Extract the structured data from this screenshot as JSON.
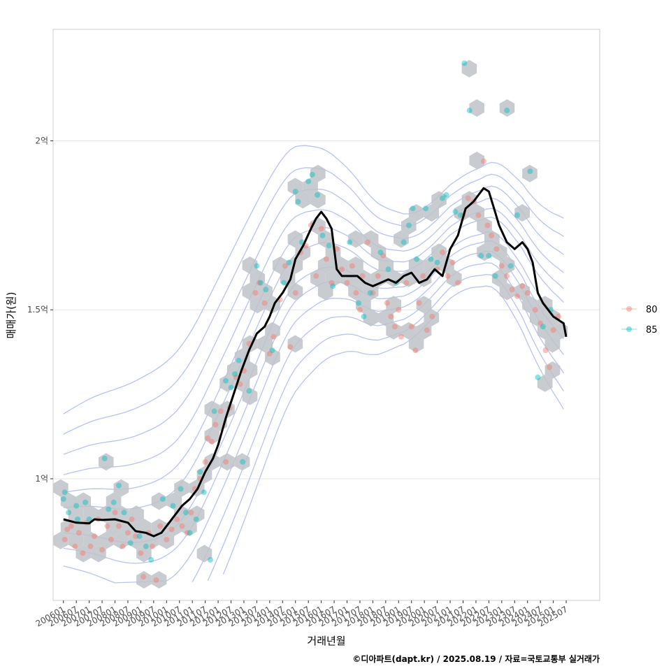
{
  "chart_data": {
    "type": "scatter",
    "title": "",
    "xlabel": "거래년월",
    "ylabel": "매매가(원)",
    "caption": "©디아파트(dapt.kr) / 2025.08.19 / 자료=국토교통부 실거래가",
    "xlim": [
      2005.6,
      2026.8
    ],
    "ylim": [
      0.64,
      2.33
    ],
    "y_unit": "억",
    "y_ticks": [
      {
        "value": 1.0,
        "label": "1억"
      },
      {
        "value": 1.5,
        "label": "1.5억"
      },
      {
        "value": 2.0,
        "label": "2억"
      }
    ],
    "x_ticks": [
      "200601",
      "200607",
      "200701",
      "200707",
      "200801",
      "200807",
      "200901",
      "200907",
      "201001",
      "201007",
      "201101",
      "201107",
      "201201",
      "201207",
      "201301",
      "201307",
      "201401",
      "201407",
      "201501",
      "201507",
      "201601",
      "201607",
      "201701",
      "201707",
      "201801",
      "201807",
      "201901",
      "201907",
      "202001",
      "202007",
      "202101",
      "202107",
      "202201",
      "202207",
      "202301",
      "202307",
      "202401",
      "202407",
      "202501",
      "202507"
    ],
    "grid": true,
    "legend": {
      "position": "right",
      "entries": [
        {
          "name": "80",
          "color": "#F8766D"
        },
        {
          "name": "85",
          "color": "#00BFC4"
        }
      ]
    },
    "colors": {
      "hexbin": "#BEC3C8",
      "contour": "#B7C4EE",
      "trend": "#000000",
      "grid": "#E6E6E6",
      "frame": "#CCCCCC"
    },
    "series": [
      {
        "name": "80",
        "color": "#F8766D",
        "points": [
          [
            2006.05,
            0.82
          ],
          [
            2006.15,
            0.85
          ],
          [
            2006.3,
            0.86
          ],
          [
            2006.45,
            0.8
          ],
          [
            2006.6,
            0.84
          ],
          [
            2006.75,
            0.78
          ],
          [
            2006.9,
            0.87
          ],
          [
            2007.05,
            0.8
          ],
          [
            2007.2,
            0.83
          ],
          [
            2007.35,
            0.88
          ],
          [
            2007.5,
            0.79
          ],
          [
            2007.7,
            0.86
          ],
          [
            2007.85,
            0.82
          ],
          [
            2008.0,
            0.9
          ],
          [
            2008.15,
            0.86
          ],
          [
            2008.3,
            0.8
          ],
          [
            2008.5,
            0.84
          ],
          [
            2008.65,
            0.88
          ],
          [
            2008.8,
            0.83
          ],
          [
            2009.0,
            0.78
          ],
          [
            2009.1,
            0.71
          ],
          [
            2009.3,
            0.84
          ],
          [
            2009.45,
            0.8
          ],
          [
            2009.6,
            0.7
          ],
          [
            2009.75,
            0.86
          ],
          [
            2010.0,
            0.82
          ],
          [
            2010.2,
            0.85
          ],
          [
            2010.4,
            0.88
          ],
          [
            2010.6,
            0.86
          ],
          [
            2010.8,
            0.84
          ],
          [
            2010.95,
            0.9
          ],
          [
            2011.1,
            0.97
          ],
          [
            2011.3,
            1.0
          ],
          [
            2011.5,
            1.05
          ],
          [
            2011.6,
            1.12
          ],
          [
            2011.75,
            1.11
          ],
          [
            2011.9,
            1.16
          ],
          [
            2012.1,
            1.2
          ],
          [
            2012.3,
            1.05
          ],
          [
            2012.45,
            1.21
          ],
          [
            2012.7,
            1.3
          ],
          [
            2012.85,
            1.28
          ],
          [
            2013.0,
            1.32
          ],
          [
            2013.2,
            1.4
          ],
          [
            2013.45,
            1.55
          ],
          [
            2013.6,
            1.58
          ],
          [
            2013.8,
            1.52
          ],
          [
            2014.0,
            1.37
          ],
          [
            2014.15,
            1.42
          ],
          [
            2014.4,
            1.53
          ],
          [
            2014.6,
            1.63
          ],
          [
            2014.8,
            1.39
          ],
          [
            2015.0,
            1.55
          ],
          [
            2015.2,
            1.67
          ],
          [
            2015.4,
            1.69
          ],
          [
            2015.6,
            1.75
          ],
          [
            2015.8,
            1.6
          ],
          [
            2016.0,
            1.74
          ],
          [
            2016.2,
            1.65
          ],
          [
            2016.4,
            1.58
          ],
          [
            2016.6,
            1.68
          ],
          [
            2016.8,
            1.62
          ],
          [
            2017.0,
            1.58
          ],
          [
            2017.2,
            1.63
          ],
          [
            2017.35,
            1.55
          ],
          [
            2017.5,
            1.5
          ],
          [
            2017.6,
            1.6
          ],
          [
            2017.8,
            1.7
          ],
          [
            2018.0,
            1.55
          ],
          [
            2018.2,
            1.6
          ],
          [
            2018.4,
            1.66
          ],
          [
            2018.55,
            1.52
          ],
          [
            2018.7,
            1.48
          ],
          [
            2018.85,
            1.45
          ],
          [
            2019.0,
            1.5
          ],
          [
            2019.1,
            1.42
          ],
          [
            2019.3,
            1.58
          ],
          [
            2019.5,
            1.45
          ],
          [
            2019.65,
            1.38
          ],
          [
            2019.8,
            1.52
          ],
          [
            2019.95,
            1.6
          ],
          [
            2020.1,
            1.44
          ],
          [
            2020.3,
            1.48
          ],
          [
            2020.5,
            1.62
          ],
          [
            2020.7,
            1.67
          ],
          [
            2020.9,
            1.6
          ],
          [
            2021.1,
            1.64
          ],
          [
            2021.3,
            1.58
          ],
          [
            2021.5,
            1.78
          ],
          [
            2021.7,
            1.83
          ],
          [
            2021.9,
            1.82
          ],
          [
            2022.1,
            1.78
          ],
          [
            2022.3,
            1.94
          ],
          [
            2022.45,
            1.75
          ],
          [
            2022.6,
            1.72
          ],
          [
            2022.8,
            1.68
          ],
          [
            2023.0,
            1.63
          ],
          [
            2023.2,
            1.6
          ],
          [
            2023.4,
            1.56
          ],
          [
            2023.6,
            1.54
          ],
          [
            2023.8,
            1.57
          ],
          [
            2024.0,
            1.55
          ],
          [
            2024.3,
            1.5
          ],
          [
            2024.5,
            1.46
          ],
          [
            2024.7,
            1.38
          ],
          [
            2024.85,
            1.33
          ],
          [
            2025.0,
            1.44
          ],
          [
            2025.2,
            1.48
          ]
        ]
      },
      {
        "name": "85",
        "color": "#00BFC4",
        "points": [
          [
            2006.0,
            0.94
          ],
          [
            2006.05,
            0.96
          ],
          [
            2006.2,
            0.9
          ],
          [
            2006.5,
            0.92
          ],
          [
            2006.55,
            0.88
          ],
          [
            2006.85,
            0.93
          ],
          [
            2007.0,
            0.88
          ],
          [
            2007.6,
            1.06
          ],
          [
            2007.75,
            0.91
          ],
          [
            2007.95,
            0.93
          ],
          [
            2008.15,
            0.98
          ],
          [
            2008.35,
            0.9
          ],
          [
            2008.6,
            0.81
          ],
          [
            2008.95,
            0.83
          ],
          [
            2009.2,
            0.8
          ],
          [
            2009.4,
            0.76
          ],
          [
            2009.85,
            0.94
          ],
          [
            2010.25,
            0.92
          ],
          [
            2010.55,
            0.97
          ],
          [
            2010.75,
            0.9
          ],
          [
            2010.9,
            0.84
          ],
          [
            2011.15,
            0.88
          ],
          [
            2011.3,
            1.02
          ],
          [
            2011.45,
            0.96
          ],
          [
            2011.7,
            0.76
          ],
          [
            2011.85,
            1.2
          ],
          [
            2012.3,
            1.29
          ],
          [
            2012.5,
            1.27
          ],
          [
            2012.65,
            1.31
          ],
          [
            2012.8,
            1.35
          ],
          [
            2012.95,
            1.05
          ],
          [
            2013.2,
            1.26
          ],
          [
            2013.5,
            1.63
          ],
          [
            2013.65,
            1.58
          ],
          [
            2013.85,
            1.56
          ],
          [
            2014.1,
            1.38
          ],
          [
            2014.55,
            1.58
          ],
          [
            2014.75,
            1.64
          ],
          [
            2015.0,
            1.85
          ],
          [
            2015.1,
            1.82
          ],
          [
            2015.25,
            1.7
          ],
          [
            2015.5,
            1.88
          ],
          [
            2015.65,
            1.9
          ],
          [
            2015.85,
            1.84
          ],
          [
            2016.05,
            1.72
          ],
          [
            2016.3,
            1.69
          ],
          [
            2016.45,
            1.57
          ],
          [
            2017.1,
            1.7
          ],
          [
            2017.45,
            1.52
          ],
          [
            2017.65,
            1.48
          ],
          [
            2017.9,
            1.55
          ],
          [
            2018.3,
            1.67
          ],
          [
            2018.6,
            1.62
          ],
          [
            2018.9,
            1.58
          ],
          [
            2019.2,
            1.7
          ],
          [
            2019.4,
            1.75
          ],
          [
            2019.55,
            1.8
          ],
          [
            2019.7,
            1.65
          ],
          [
            2020.05,
            1.8
          ],
          [
            2020.25,
            1.65
          ],
          [
            2020.5,
            1.64
          ],
          [
            2020.7,
            1.83
          ],
          [
            2020.85,
            1.84
          ],
          [
            2021.2,
            1.79
          ],
          [
            2021.4,
            1.78
          ],
          [
            2021.55,
            2.23
          ],
          [
            2021.75,
            2.09
          ],
          [
            2022.2,
            1.66
          ],
          [
            2022.5,
            1.66
          ],
          [
            2022.75,
            1.6
          ],
          [
            2023.2,
            2.09
          ],
          [
            2023.35,
            1.63
          ],
          [
            2023.6,
            1.78
          ],
          [
            2024.1,
            1.91
          ],
          [
            2024.4,
            1.3
          ],
          [
            2024.6,
            1.45
          ],
          [
            2024.9,
            1.5
          ]
        ]
      }
    ],
    "trend": [
      [
        2006.0,
        0.88
      ],
      [
        2006.5,
        0.87
      ],
      [
        2007.0,
        0.868
      ],
      [
        2007.2,
        0.88
      ],
      [
        2007.5,
        0.878
      ],
      [
        2008.0,
        0.88
      ],
      [
        2008.5,
        0.87
      ],
      [
        2008.8,
        0.845
      ],
      [
        2009.2,
        0.84
      ],
      [
        2009.5,
        0.83
      ],
      [
        2009.8,
        0.84
      ],
      [
        2010.1,
        0.87
      ],
      [
        2010.4,
        0.9
      ],
      [
        2010.6,
        0.92
      ],
      [
        2010.9,
        0.94
      ],
      [
        2011.2,
        0.97
      ],
      [
        2011.5,
        1.02
      ],
      [
        2011.8,
        1.06
      ],
      [
        2012.0,
        1.1
      ],
      [
        2012.3,
        1.18
      ],
      [
        2012.6,
        1.25
      ],
      [
        2012.9,
        1.32
      ],
      [
        2013.2,
        1.38
      ],
      [
        2013.5,
        1.43
      ],
      [
        2013.8,
        1.45
      ],
      [
        2014.0,
        1.48
      ],
      [
        2014.2,
        1.52
      ],
      [
        2014.5,
        1.55
      ],
      [
        2014.8,
        1.59
      ],
      [
        2015.0,
        1.65
      ],
      [
        2015.3,
        1.69
      ],
      [
        2015.6,
        1.74
      ],
      [
        2015.8,
        1.77
      ],
      [
        2016.0,
        1.79
      ],
      [
        2016.2,
        1.77
      ],
      [
        2016.4,
        1.74
      ],
      [
        2016.6,
        1.62
      ],
      [
        2016.8,
        1.6
      ],
      [
        2017.1,
        1.6
      ],
      [
        2017.4,
        1.6
      ],
      [
        2017.7,
        1.58
      ],
      [
        2018.0,
        1.57
      ],
      [
        2018.3,
        1.58
      ],
      [
        2018.6,
        1.59
      ],
      [
        2018.9,
        1.58
      ],
      [
        2019.2,
        1.6
      ],
      [
        2019.5,
        1.61
      ],
      [
        2019.8,
        1.58
      ],
      [
        2020.1,
        1.59
      ],
      [
        2020.4,
        1.62
      ],
      [
        2020.7,
        1.6
      ],
      [
        2021.0,
        1.68
      ],
      [
        2021.3,
        1.72
      ],
      [
        2021.6,
        1.8
      ],
      [
        2021.9,
        1.82
      ],
      [
        2022.1,
        1.84
      ],
      [
        2022.3,
        1.86
      ],
      [
        2022.5,
        1.85
      ],
      [
        2022.7,
        1.8
      ],
      [
        2022.9,
        1.75
      ],
      [
        2023.2,
        1.7
      ],
      [
        2023.5,
        1.68
      ],
      [
        2023.8,
        1.7
      ],
      [
        2024.0,
        1.68
      ],
      [
        2024.2,
        1.64
      ],
      [
        2024.4,
        1.55
      ],
      [
        2024.6,
        1.52
      ],
      [
        2024.8,
        1.5
      ],
      [
        2025.0,
        1.48
      ],
      [
        2025.2,
        1.47
      ],
      [
        2025.4,
        1.46
      ],
      [
        2025.5,
        1.42
      ]
    ]
  }
}
